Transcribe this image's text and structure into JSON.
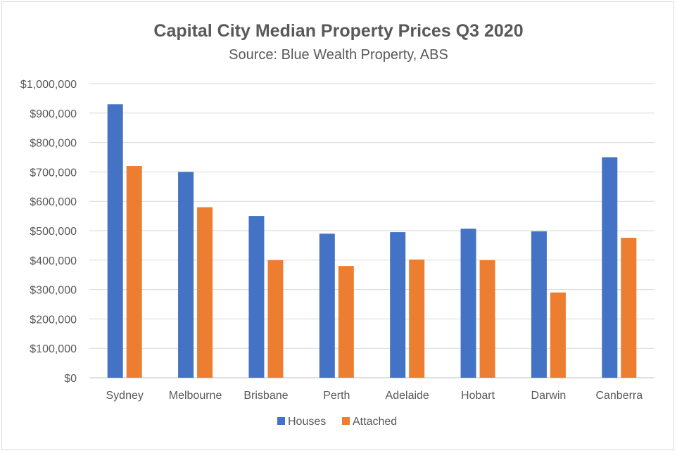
{
  "chart_data": {
    "type": "bar",
    "title": "Capital City Median Property Prices Q3 2020",
    "subtitle": "Source: Blue Wealth Property, ABS",
    "xlabel": "",
    "ylabel": "",
    "categories": [
      "Sydney",
      "Melbourne",
      "Brisbane",
      "Perth",
      "Adelaide",
      "Hobart",
      "Darwin",
      "Canberra"
    ],
    "series": [
      {
        "name": "Houses",
        "color": "#4472c4",
        "values": [
          930000,
          700000,
          550000,
          490000,
          495000,
          507000,
          498000,
          750000
        ]
      },
      {
        "name": "Attached",
        "color": "#ed7d31",
        "values": [
          720000,
          580000,
          400000,
          380000,
          402000,
          400000,
          290000,
          476000
        ]
      }
    ],
    "ylim": [
      0,
      1000000
    ],
    "yticks": [
      0,
      100000,
      200000,
      300000,
      400000,
      500000,
      600000,
      700000,
      800000,
      900000,
      1000000
    ],
    "ytick_labels": [
      "$0",
      "$100,000",
      "$200,000",
      "$300,000",
      "$400,000",
      "$500,000",
      "$600,000",
      "$700,000",
      "$800,000",
      "$900,000",
      "$1,000,000"
    ],
    "grid": true,
    "legend_position": "bottom"
  }
}
